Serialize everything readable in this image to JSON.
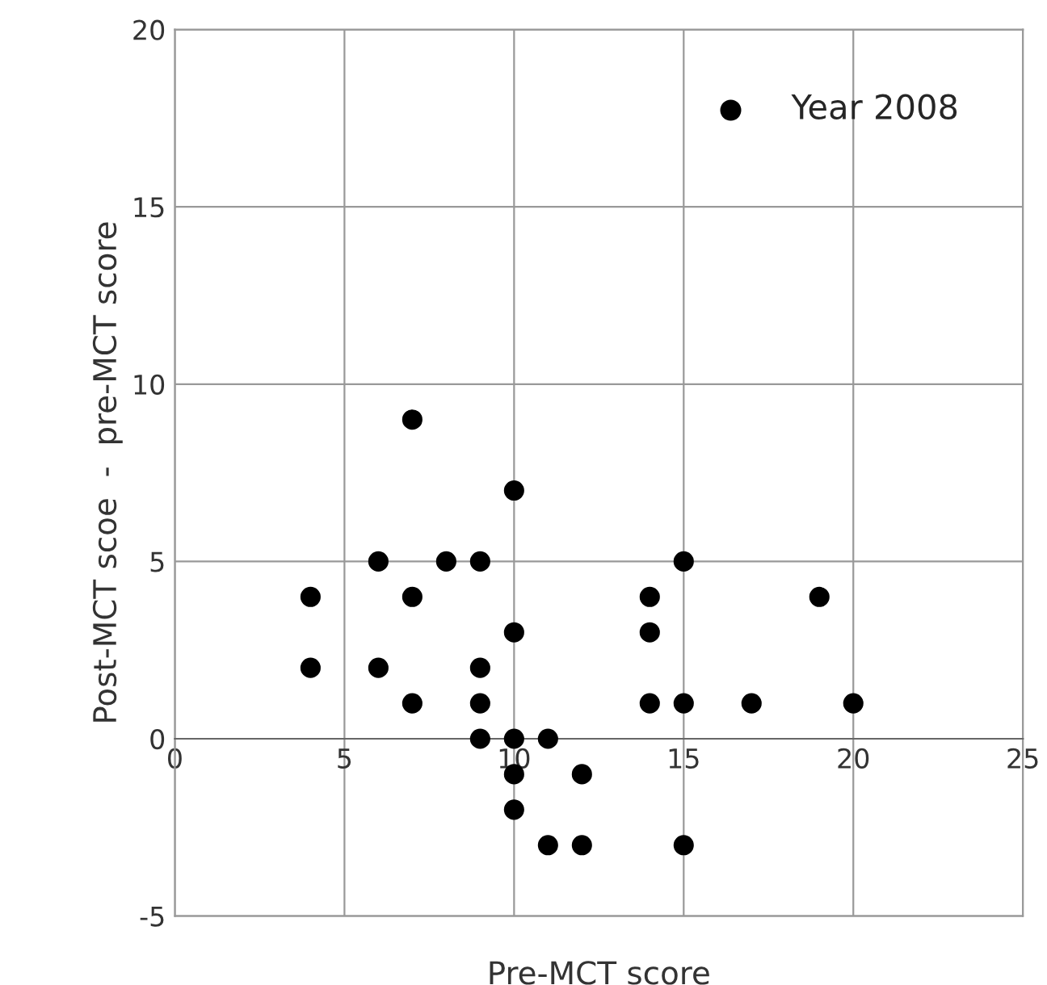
{
  "chart_data": {
    "type": "scatter",
    "xlabel": "Pre-MCT score",
    "ylabel": "Post-MCT scoe  -  pre-MCT score",
    "xlim": [
      0,
      25
    ],
    "ylim": [
      -5,
      20
    ],
    "xticks": [
      0,
      5,
      10,
      15,
      20,
      25
    ],
    "yticks": [
      -5,
      0,
      5,
      10,
      15,
      20
    ],
    "grid": true,
    "legend": "top right",
    "marker": "circle",
    "series": [
      {
        "name": "Year 2008",
        "color": "#000000",
        "x": [
          4,
          4,
          6,
          6,
          7,
          7,
          7,
          8,
          9,
          9,
          9,
          9,
          10,
          10,
          10,
          10,
          10,
          11,
          11,
          12,
          12,
          14,
          14,
          14,
          15,
          15,
          15,
          17,
          19,
          20
        ],
        "values": [
          4,
          2,
          5,
          2,
          9,
          4,
          1,
          5,
          5,
          2,
          1,
          0,
          7,
          3,
          0,
          -1,
          -2,
          0,
          -3,
          -1,
          -3,
          4,
          3,
          1,
          5,
          1,
          -3,
          1,
          4,
          1
        ]
      }
    ]
  }
}
